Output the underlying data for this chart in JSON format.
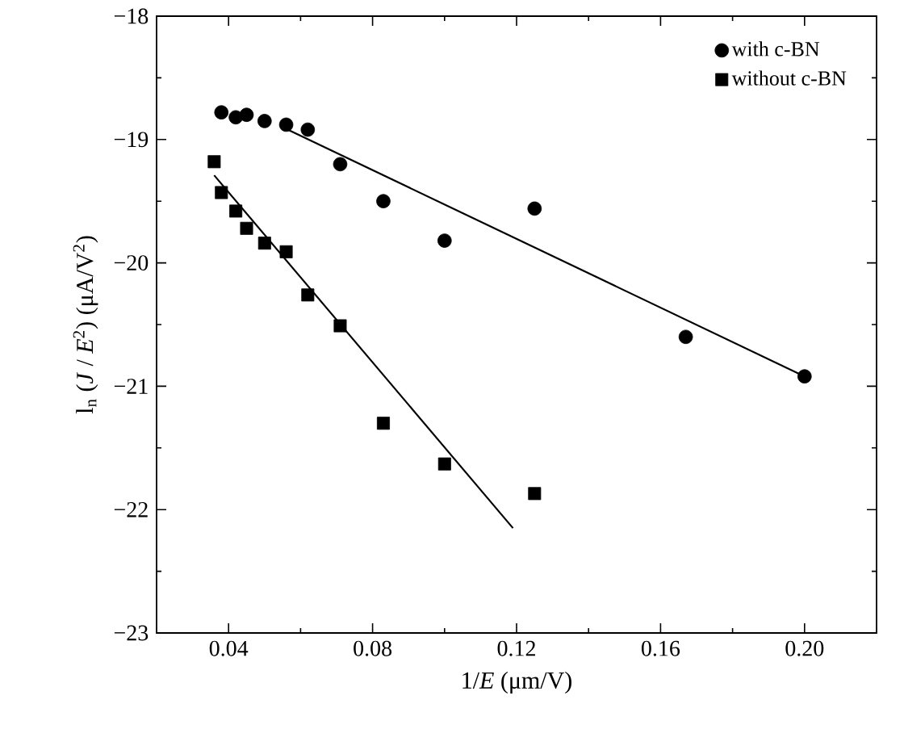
{
  "chart_data": {
    "type": "scatter",
    "xlabel": "1/*E* (μm/V)",
    "ylabel": "l$_{n}$ (*J* / *E*$^{2}$) (μA/V$^{2}$)",
    "xlim": [
      0.02,
      0.22
    ],
    "ylim": [
      -23,
      -18
    ],
    "xticks": [
      0.04,
      0.08,
      0.12,
      0.16,
      {
        "value": 0.2,
        "label": "0.20"
      }
    ],
    "yticks": [
      {
        "value": -23,
        "label": "−23"
      },
      {
        "value": -22,
        "label": "−22"
      },
      {
        "value": -21,
        "label": "−21"
      },
      {
        "value": -20,
        "label": "−20"
      },
      {
        "value": -19,
        "label": "−19"
      },
      {
        "value": -18,
        "label": "−18"
      }
    ],
    "grid": false,
    "legend": "top right",
    "series": [
      {
        "name": "with c-BN",
        "marker": "circle",
        "color": "#000000",
        "x": [
          0.038,
          0.042,
          0.045,
          0.05,
          0.056,
          0.062,
          0.071,
          0.083,
          0.1,
          0.125,
          0.167,
          0.2
        ],
        "values": [
          -18.78,
          -18.82,
          -18.8,
          -18.85,
          -18.88,
          -18.92,
          -19.2,
          -19.5,
          -19.82,
          -19.56,
          -20.6,
          -20.92
        ]
      },
      {
        "name": "without c-BN",
        "marker": "square",
        "color": "#000000",
        "x": [
          0.036,
          0.038,
          0.042,
          0.045,
          0.05,
          0.056,
          0.062,
          0.071,
          0.083,
          0.1,
          0.125
        ],
        "values": [
          -19.18,
          -19.43,
          -19.58,
          -19.72,
          -19.84,
          -19.91,
          -20.26,
          -20.51,
          -21.3,
          -21.63,
          -21.87
        ]
      },
      {
        "type": "line",
        "marker": "none",
        "line_style": "solid",
        "color": "#000000",
        "x": [
          0.055,
          0.2
        ],
        "values": [
          -18.9,
          -20.92
        ]
      },
      {
        "type": "line",
        "marker": "none",
        "line_style": "solid",
        "color": "#000000",
        "x": [
          0.036,
          0.119
        ],
        "values": [
          -19.29,
          -22.15
        ]
      }
    ]
  }
}
